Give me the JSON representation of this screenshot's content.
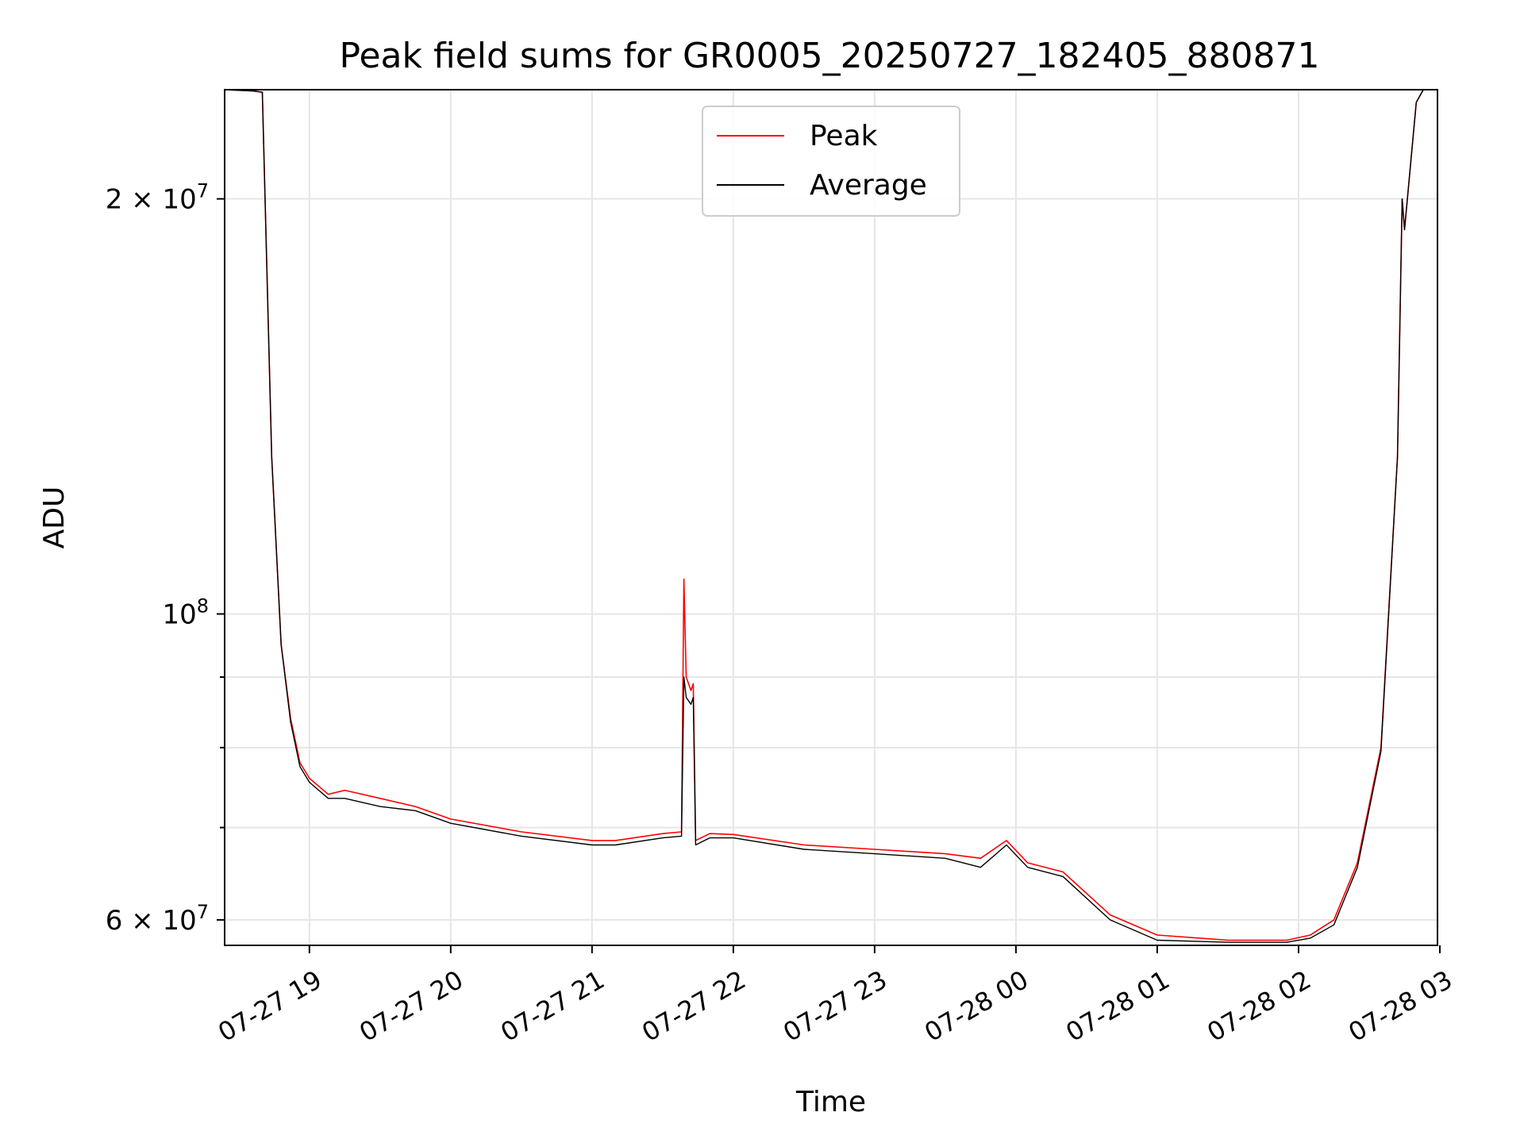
{
  "chart_data": {
    "type": "line",
    "title": "Peak field sums for GR0005_20250727_182405_880871",
    "xlabel": "Time",
    "ylabel": "ADU",
    "yscale": "log",
    "ylim": [
      57500000,
      240000000
    ],
    "xlim": [
      "2025-07-27 18:24",
      "2025-07-28 02:59"
    ],
    "x_ticks": [
      "07-27 19",
      "07-27 20",
      "07-27 21",
      "07-27 22",
      "07-27 23",
      "07-28 00",
      "07-28 01",
      "07-28 02",
      "07-28 03"
    ],
    "y_ticks": [
      {
        "base": "10",
        "exp": "8",
        "coef": ""
      },
      {
        "base": "10",
        "exp": "7",
        "coef": "2 × "
      },
      {
        "base": "10",
        "exp": "7",
        "coef": "6 × "
      }
    ],
    "grid": true,
    "legend": "upper-center",
    "series": [
      {
        "name": "Peak",
        "color": "#ff0000",
        "x": [
          "2025-07-27 18:24",
          "2025-07-27 18:36",
          "2025-07-27 18:40",
          "2025-07-27 18:44",
          "2025-07-27 18:48",
          "2025-07-27 18:52",
          "2025-07-27 18:56",
          "2025-07-27 19:00",
          "2025-07-27 19:08",
          "2025-07-27 19:15",
          "2025-07-27 19:30",
          "2025-07-27 19:45",
          "2025-07-27 20:00",
          "2025-07-27 20:30",
          "2025-07-27 21:00",
          "2025-07-27 21:10",
          "2025-07-27 21:30",
          "2025-07-27 21:38",
          "2025-07-27 21:39",
          "2025-07-27 21:40",
          "2025-07-27 21:42",
          "2025-07-27 21:43",
          "2025-07-27 21:44",
          "2025-07-27 21:50",
          "2025-07-27 22:00",
          "2025-07-27 22:30",
          "2025-07-27 23:00",
          "2025-07-27 23:30",
          "2025-07-27 23:45",
          "2025-07-27 23:56",
          "2025-07-28 00:05",
          "2025-07-28 00:20",
          "2025-07-28 00:40",
          "2025-07-28 01:00",
          "2025-07-28 01:30",
          "2025-07-28 01:55",
          "2025-07-28 02:05",
          "2025-07-28 02:15",
          "2025-07-28 02:25",
          "2025-07-28 02:35",
          "2025-07-28 02:42",
          "2025-07-28 02:44",
          "2025-07-28 02:45",
          "2025-07-28 02:50",
          "2025-07-28 02:53"
        ],
        "values": [
          240000000,
          239500000,
          239000000,
          130000000,
          95000000,
          84000000,
          78000000,
          76000000,
          74000000,
          74500000,
          73500000,
          72500000,
          71000000,
          69500000,
          68500000,
          68500000,
          69300000,
          69500000,
          106000000,
          90000000,
          88000000,
          89000000,
          68500000,
          69300000,
          69200000,
          68000000,
          67500000,
          67000000,
          66500000,
          68500000,
          66000000,
          65000000,
          60500000,
          58500000,
          58000000,
          58000000,
          58500000,
          60000000,
          66000000,
          80000000,
          130000000,
          200000000,
          190000000,
          235000000,
          240000000
        ]
      },
      {
        "name": "Average",
        "color": "#000000",
        "x": [
          "2025-07-27 18:24",
          "2025-07-27 18:36",
          "2025-07-27 18:40",
          "2025-07-27 18:44",
          "2025-07-27 18:48",
          "2025-07-27 18:52",
          "2025-07-27 18:56",
          "2025-07-27 19:00",
          "2025-07-27 19:08",
          "2025-07-27 19:15",
          "2025-07-27 19:30",
          "2025-07-27 19:45",
          "2025-07-27 20:00",
          "2025-07-27 20:30",
          "2025-07-27 21:00",
          "2025-07-27 21:10",
          "2025-07-27 21:30",
          "2025-07-27 21:38",
          "2025-07-27 21:39",
          "2025-07-27 21:40",
          "2025-07-27 21:42",
          "2025-07-27 21:43",
          "2025-07-27 21:44",
          "2025-07-27 21:50",
          "2025-07-27 22:00",
          "2025-07-27 22:30",
          "2025-07-27 23:00",
          "2025-07-27 23:30",
          "2025-07-27 23:45",
          "2025-07-27 23:56",
          "2025-07-28 00:05",
          "2025-07-28 00:20",
          "2025-07-28 00:40",
          "2025-07-28 01:00",
          "2025-07-28 01:30",
          "2025-07-28 01:55",
          "2025-07-28 02:05",
          "2025-07-28 02:15",
          "2025-07-28 02:25",
          "2025-07-28 02:35",
          "2025-07-28 02:42",
          "2025-07-28 02:44",
          "2025-07-28 02:45",
          "2025-07-28 02:50",
          "2025-07-28 02:53"
        ],
        "values": [
          240000000,
          239500000,
          239000000,
          130000000,
          95000000,
          83500000,
          77500000,
          75500000,
          73500000,
          73500000,
          72500000,
          72000000,
          70500000,
          69000000,
          68000000,
          68000000,
          68800000,
          69000000,
          90000000,
          87000000,
          86000000,
          87000000,
          68000000,
          68800000,
          68800000,
          67500000,
          67000000,
          66500000,
          65500000,
          68000000,
          65500000,
          64500000,
          60000000,
          58000000,
          57800000,
          57800000,
          58200000,
          59500000,
          65500000,
          79500000,
          130000000,
          200000000,
          190000000,
          235000000,
          240000000
        ]
      }
    ]
  }
}
